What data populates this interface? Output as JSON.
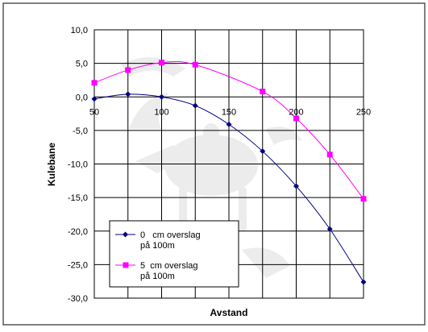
{
  "chart_data": {
    "type": "line",
    "title": "",
    "xlabel": "Avstand",
    "ylabel": "Kulebane",
    "xlim": [
      50,
      250
    ],
    "ylim": [
      -30,
      10
    ],
    "x_ticks": [
      "50",
      "100",
      "150",
      "200",
      "250"
    ],
    "y_ticks": [
      "10,0",
      "5,0",
      "0,0",
      "-5,0",
      "-10,0",
      "-15,0",
      "-20,0",
      "-25,0",
      "-30,0"
    ],
    "grid": true,
    "legend_position": "bottom-left",
    "x": [
      50,
      75,
      100,
      125,
      150,
      175,
      200,
      225,
      250
    ],
    "series": [
      {
        "name_line1": "0   cm overslag",
        "name_line2": "på 100m",
        "color": "#000080",
        "marker": "diamond",
        "values": [
          -0.3,
          0.4,
          0.0,
          -1.3,
          -4.1,
          -8.1,
          -13.3,
          -19.7,
          -27.6
        ]
      },
      {
        "name_line1": "5  cm overslag",
        "name_line2": "på 100m",
        "color": "#ff00ff",
        "marker": "square",
        "values": [
          2.1,
          4.0,
          5.1,
          4.8,
          null,
          0.8,
          -3.2,
          -8.6,
          -15.2
        ]
      }
    ]
  }
}
